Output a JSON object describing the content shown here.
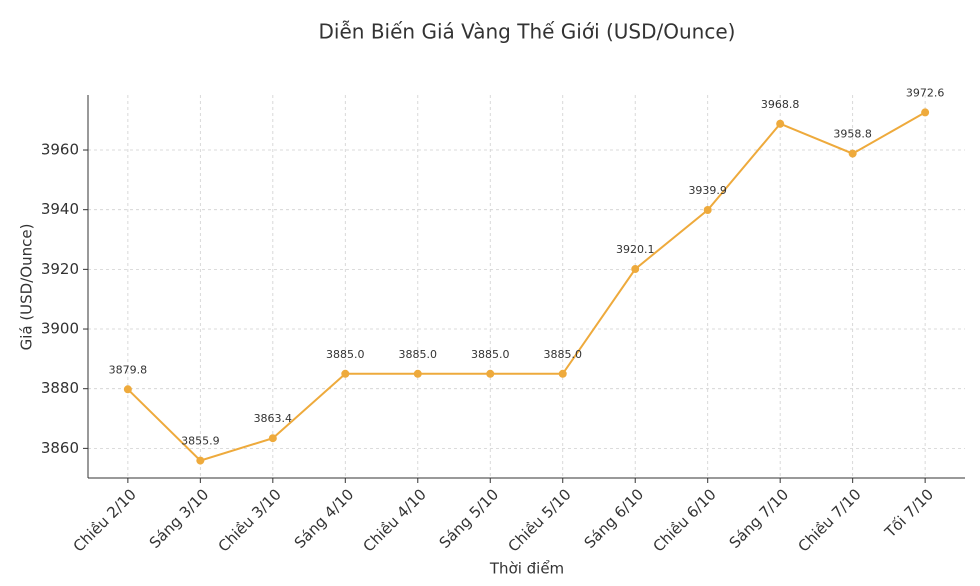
{
  "chart_data": {
    "type": "line",
    "title": "Diễn Biến Giá Vàng Thế Giới (USD/Ounce)",
    "x_label": "Thời điểm",
    "y_label": "Giá (USD/Ounce)",
    "categories": [
      "Chiều 2/10",
      "Sáng 3/10",
      "Chiều 3/10",
      "Sáng 4/10",
      "Chiều 4/10",
      "Sáng 5/10",
      "Chiều 5/10",
      "Sáng 6/10",
      "Chiều 6/10",
      "Sáng 7/10",
      "Chiều 7/10",
      "Tối 7/10"
    ],
    "values": [
      3879.8,
      3855.9,
      3863.4,
      3885,
      3885,
      3885,
      3885,
      3920.1,
      3939.9,
      3968.8,
      3958.8,
      3972.6
    ],
    "value_labels": [
      "3879.8",
      "3855.9",
      "3863.4",
      "3885.0",
      "3885.0",
      "3885.0",
      "3885.0",
      "3920.1",
      "3939.9",
      "3968.8",
      "3958.8",
      "3972.6"
    ],
    "color": "#eeaa3c",
    "ylim": [
      3850.07,
      3978.44
    ],
    "yticks": [
      3860,
      3880,
      3900,
      3920,
      3940,
      3960
    ],
    "grid": true
  }
}
